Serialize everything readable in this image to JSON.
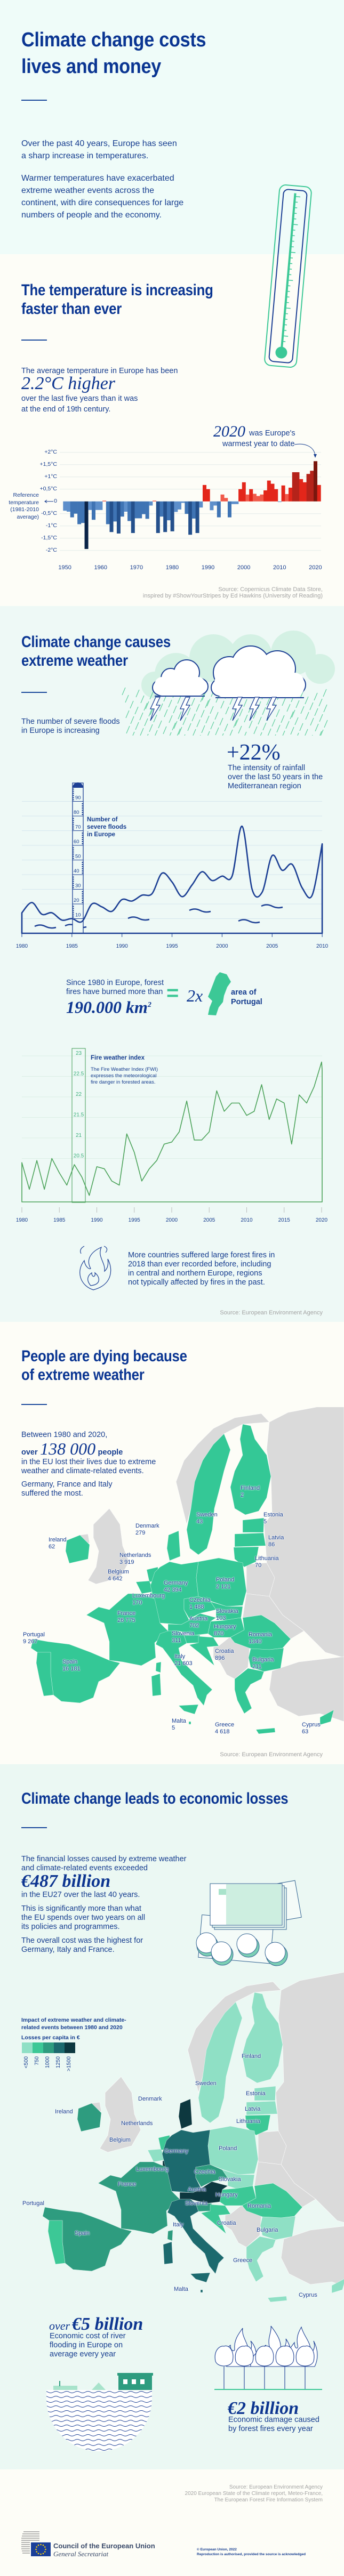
{
  "intro": {
    "title": [
      "Climate change costs",
      "lives and money"
    ],
    "p1": [
      "Over the past 40 years, Europe has seen",
      "a sharp increase in temperatures."
    ],
    "p2": [
      "Warmer temperatures have exacerbated",
      "extreme weather events across the",
      "continent, with dire consequences for large",
      "numbers of people and the economy."
    ]
  },
  "temperature": {
    "title": [
      "The temperature is increasing",
      "faster than ever"
    ],
    "lead": "The average temperature in Europe has been",
    "highlight": "2.2°C higher",
    "rest": [
      "over the last five years than it was",
      "at the end of 19th century."
    ],
    "annotation_year": "2020",
    "annotation_text1": "was Europe's",
    "annotation_text2": "warmest year to date",
    "reference_label": [
      "Reference",
      "temperature",
      "(1981-2010",
      "average)"
    ],
    "source": [
      "Source: Copernicus Climate Data Store,",
      "inspired by #ShowYourStripes by Ed Hawkins (University of Reading)"
    ]
  },
  "weather": {
    "title": [
      "Climate change causes",
      "extreme weather"
    ],
    "floods_text": [
      "The number of severe floods",
      "in Europe is increasing"
    ],
    "rain_stat": "+22%",
    "rain_text": [
      "The intensity of rainfall",
      "over the last 50 years in the",
      "Mediterranean region"
    ],
    "gauge_label": [
      "Number of",
      "severe floods",
      "in Europe"
    ],
    "fires_text": [
      "Since 1980 in Europe, forest",
      "fires have burned more than"
    ],
    "fires_stat": "190.000 km",
    "fires_sup": "2",
    "equals": "=",
    "times": "2x",
    "portugal_label": [
      "area of",
      "Portugal"
    ],
    "fwi_title": "Fire weather index",
    "fwi_text": [
      "The Fire Weather Index (FWI)",
      "expresses the meteorological",
      "fire danger in forested areas."
    ],
    "fires_2018": [
      "More countries suffered large forest fires in",
      "2018 than ever recorded before, including",
      "in central and northern Europe, regions",
      "not typically affected by fires in the past."
    ],
    "source": "Source: European Environment Agency"
  },
  "deaths": {
    "title": [
      "People are dying because",
      "of extreme weather"
    ],
    "lead": "Between 1980 and 2020,",
    "over": "over",
    "stat": "138 000",
    "people": "people",
    "rest": [
      "in the EU lost their lives due to extreme",
      "weather and climate-related events."
    ],
    "most": [
      "Germany, France and Italy",
      "suffered the most."
    ],
    "source": "Source: European Environment Agency",
    "countries": [
      {
        "name": "Finland",
        "value": "2"
      },
      {
        "name": "Sweden",
        "value": "43"
      },
      {
        "name": "Estonia",
        "value": "5"
      },
      {
        "name": "Denmark",
        "value": "279"
      },
      {
        "name": "Latvia",
        "value": "86"
      },
      {
        "name": "Ireland",
        "value": "62"
      },
      {
        "name": "Netherlands",
        "value": "3 919"
      },
      {
        "name": "Lithuania",
        "value": "70"
      },
      {
        "name": "Belgium",
        "value": "4 642"
      },
      {
        "name": "Germany",
        "value": "42 394"
      },
      {
        "name": "Poland",
        "value": "2 121"
      },
      {
        "name": "Luxembourg",
        "value": "170"
      },
      {
        "name": "Czechia",
        "value": "1 488"
      },
      {
        "name": "Slovakia",
        "value": "103"
      },
      {
        "name": "France",
        "value": "26 775"
      },
      {
        "name": "Austria",
        "value": "702"
      },
      {
        "name": "Hungary",
        "value": "870"
      },
      {
        "name": "Slovenia",
        "value": "311"
      },
      {
        "name": "Romania",
        "value": "1340"
      },
      {
        "name": "Portugal",
        "value": "9 267"
      },
      {
        "name": "Croatia",
        "value": "896"
      },
      {
        "name": "Italy",
        "value": "21 603"
      },
      {
        "name": "Bulgaria",
        "value": "211"
      },
      {
        "name": "Spain",
        "value": "16 181"
      },
      {
        "name": "Malta",
        "value": "5"
      },
      {
        "name": "Greece",
        "value": "4 618"
      },
      {
        "name": "Cyprus",
        "value": "63"
      }
    ]
  },
  "economy": {
    "title": "Climate change leads to economic losses",
    "lead": [
      "The financial losses caused by extreme weather",
      "and climate-related events exceeded"
    ],
    "stat": "€487 billion",
    "rest": "in the EU27 over the last 40 years.",
    "p2": [
      "This is significantly more than what",
      "the EU spends over two years on all",
      "its policies and programmes."
    ],
    "p3": [
      "The overall cost was the highest for",
      "Germany, Italy and France."
    ],
    "legend_title": [
      "Impact of extreme weather and climate-",
      "related events between 1980 and 2020"
    ],
    "legend_subtitle": "Losses per capita in €",
    "legend_labels": [
      "<500",
      "750",
      "1000",
      "1250",
      ">1500"
    ],
    "legend_colors": [
      "#8fe0c5",
      "#3cc896",
      "#2e9c7f",
      "#1c6a6e",
      "#0d383f"
    ],
    "countries": [
      {
        "name": "Finland",
        "cat": 0
      },
      {
        "name": "Sweden",
        "cat": 0
      },
      {
        "name": "Estonia",
        "cat": 0
      },
      {
        "name": "Denmark",
        "cat": 4
      },
      {
        "name": "Latvia",
        "cat": 0
      },
      {
        "name": "Ireland",
        "cat": 2
      },
      {
        "name": "Netherlands",
        "cat": 1
      },
      {
        "name": "Lithuania",
        "cat": 1
      },
      {
        "name": "Belgium",
        "cat": 0
      },
      {
        "name": "Germany",
        "cat": 3
      },
      {
        "name": "Poland",
        "cat": 0
      },
      {
        "name": "Luxembourg",
        "cat": 4
      },
      {
        "name": "Czechia",
        "cat": 2
      },
      {
        "name": "Slovakia",
        "cat": 0
      },
      {
        "name": "France",
        "cat": 2
      },
      {
        "name": "Austria",
        "cat": 4
      },
      {
        "name": "Hungary",
        "cat": 1
      },
      {
        "name": "Slovenia",
        "cat": 2
      },
      {
        "name": "Romania",
        "cat": 1
      },
      {
        "name": "Portugal",
        "cat": 1
      },
      {
        "name": "Croatia",
        "cat": 1
      },
      {
        "name": "Italy",
        "cat": 3
      },
      {
        "name": "Bulgaria",
        "cat": 0
      },
      {
        "name": "Spain",
        "cat": 2
      },
      {
        "name": "Malta",
        "cat": 3
      },
      {
        "name": "Greece",
        "cat": 0
      },
      {
        "name": "Cyprus",
        "cat": 0
      }
    ],
    "flood_stat_over": "over",
    "flood_stat": "€5 billion",
    "flood_text": [
      "Economic cost of river",
      "flooding in Europe on",
      "average every year"
    ],
    "fire_stat": "€2 billion",
    "fire_text": [
      "Economic damage caused",
      "by forest fires every year"
    ]
  },
  "footer": {
    "source": [
      "Source: European Environment Agency",
      "2020 European State of the Climate report, Meteo-France,",
      "The European Forest Fire Information System"
    ],
    "org": "Council of the European Union",
    "org_sub": "General Secretariat",
    "copyright": "© European Union, 2022",
    "reproduction": "Reproduction is authorised, provided the source is acknowledged"
  },
  "colors": {
    "navy": "#0a3592",
    "green": "#3cc896",
    "eu_green": "#34c896",
    "grey_land": "#dadada",
    "warm": [
      "#f05a4a",
      "#e3261a",
      "#b5231a",
      "#7a170e"
    ],
    "cold": [
      "#5d8fcb",
      "#3f74b4",
      "#24508c",
      "#0a2347"
    ]
  },
  "chart_data": [
    {
      "type": "bar",
      "title": "European temperature anomaly",
      "ylabel": "Reference temperature (1981-2010 average)",
      "ylim": [
        -2,
        2
      ],
      "yticks": [
        "+2°C",
        "+1,5°C",
        "+1°C",
        "+0,5°C",
        "0",
        "-0,5°C",
        "-1°C",
        "-1,5°C",
        "-2°C"
      ],
      "ytick_values": [
        2,
        1.5,
        1,
        0.5,
        0,
        -0.5,
        -1,
        -1.5,
        -2
      ],
      "xticks": [
        "1950",
        "1960",
        "1970",
        "1980",
        "1990",
        "2000",
        "2010",
        "2020"
      ],
      "x_start": 1950,
      "values": [
        -0.38,
        -0.42,
        -0.65,
        -0.5,
        -0.93,
        -0.88,
        -1.94,
        -0.35,
        -0.75,
        -0.35,
        -0.35,
        0.03,
        -0.93,
        -1.25,
        -0.82,
        -1.31,
        -0.62,
        -0.42,
        -0.8,
        -1.29,
        -0.69,
        -0.69,
        -0.52,
        -0.71,
        -0.17,
        0.03,
        -1.29,
        -0.62,
        -1.25,
        -0.77,
        -1.22,
        -0.43,
        -0.33,
        -0.06,
        -0.51,
        -1.36,
        -0.7,
        -1.29,
        -0.25,
        0.67,
        0.5,
        -0.36,
        -0.17,
        -0.65,
        0.28,
        0.14,
        -0.65,
        -0.11,
        -0.11,
        0.5,
        0.78,
        0.28,
        0.5,
        0.31,
        0.22,
        0.28,
        0.45,
        0.85,
        0.72,
        0.5,
        -0.02,
        0.65,
        0.3,
        0.56,
        1.19,
        1.19,
        0.91,
        0.78,
        1.12,
        1.25,
        1.64,
        0.67
      ]
    },
    {
      "type": "line",
      "title": "Number of severe floods in Europe",
      "ylim": [
        0,
        90
      ],
      "yticks": [
        "10",
        "20",
        "30",
        "40",
        "50",
        "60",
        "70",
        "80",
        "90"
      ],
      "xticks": [
        "1980",
        "1985",
        "1990",
        "1995",
        "2000",
        "2005",
        "2010"
      ],
      "x_start": 1980,
      "values": [
        14,
        21,
        13,
        14,
        9,
        10,
        8,
        20,
        18,
        15,
        23,
        22,
        26,
        27,
        41,
        35,
        25,
        33,
        42,
        36,
        39,
        39,
        73,
        30,
        28,
        53,
        43,
        47,
        31,
        26,
        61
      ]
    },
    {
      "type": "line",
      "title": "Fire weather index",
      "ylim": [
        19.44,
        23
      ],
      "yticks": [
        "23",
        "22.5",
        "22",
        "21.5",
        "21",
        "20.5"
      ],
      "ytick_values": [
        23,
        22.5,
        22,
        21.5,
        21,
        20.5
      ],
      "xticks": [
        "1980",
        "1985",
        "1990",
        "1995",
        "2000",
        "2005",
        "2010",
        "2015",
        "2020"
      ],
      "x_start": 1980,
      "values": [
        20.4,
        19.75,
        20.45,
        19.75,
        20.5,
        20.15,
        19.85,
        20.35,
        20.05,
        19.6,
        20.3,
        20.25,
        19.95,
        19.85,
        21.1,
        20.65,
        19.95,
        20.25,
        20.45,
        20.85,
        20.9,
        21.15,
        21.9,
        20.95,
        20.95,
        21.15,
        22.15,
        21.65,
        21.85,
        21.85,
        21.55,
        21.65,
        22.3,
        21.45,
        21.95,
        21.85,
        20.85,
        22.05,
        21.85,
        22.25,
        22.85
      ]
    }
  ]
}
